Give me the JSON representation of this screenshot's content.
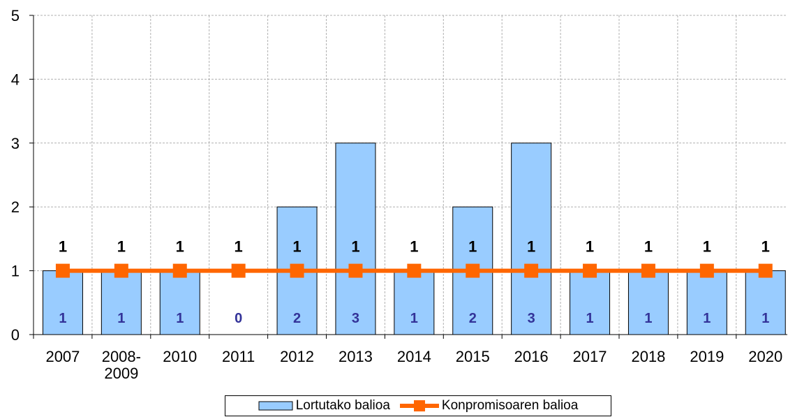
{
  "chart_data": {
    "type": "bar",
    "categories": [
      "2007",
      "2008-2009",
      "2010",
      "2011",
      "2012",
      "2013",
      "2014",
      "2015",
      "2016",
      "2017",
      "2018",
      "2019",
      "2020"
    ],
    "series": [
      {
        "name": "Lortutako balioa",
        "type": "bar",
        "color": "#99ccff",
        "values": [
          1,
          1,
          1,
          0,
          2,
          3,
          1,
          2,
          3,
          1,
          1,
          1,
          1
        ]
      },
      {
        "name": "Konpromisoaren balioa",
        "type": "line",
        "color": "#ff6600",
        "values": [
          1,
          1,
          1,
          1,
          1,
          1,
          1,
          1,
          1,
          1,
          1,
          1,
          1
        ]
      }
    ],
    "ylim": [
      0,
      5
    ],
    "yticks": [
      0,
      1,
      2,
      3,
      4,
      5
    ],
    "grid": true,
    "legend": "bottom"
  }
}
